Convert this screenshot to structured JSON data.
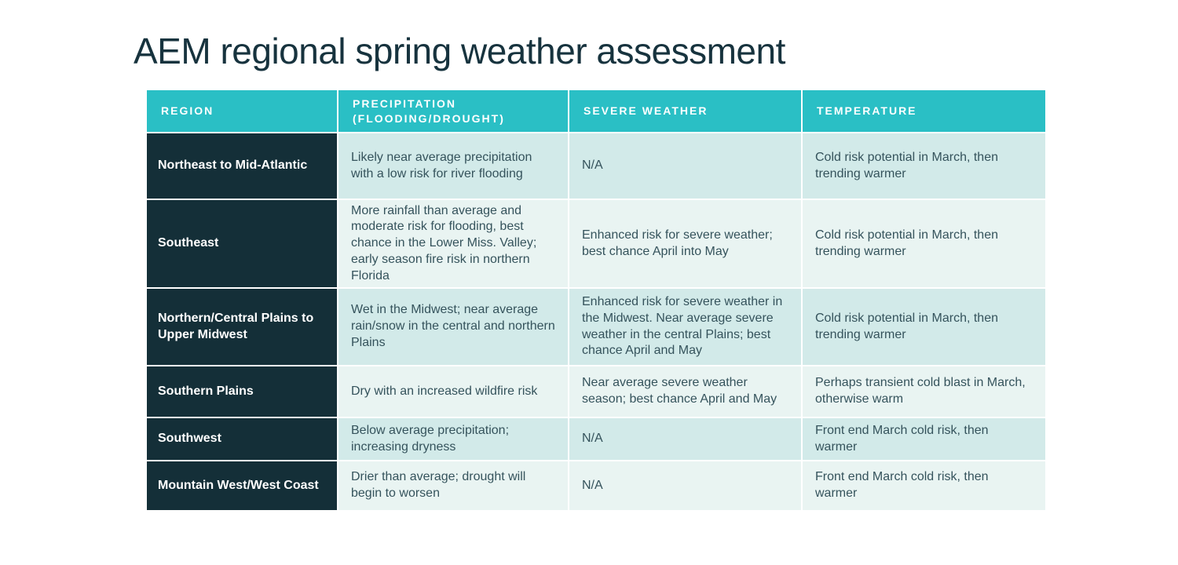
{
  "page": {
    "title": "AEM regional spring weather assessment"
  },
  "colors": {
    "header_bg": "#2abfc5",
    "region_column_bg": "#142f38",
    "row_odd_bg": "#d2eae9",
    "row_even_bg": "#e9f4f2",
    "title_text": "#17333e",
    "body_text": "#35535c",
    "header_text": "#ffffff"
  },
  "table": {
    "columns": [
      "REGION",
      "PRECIPITATION (FLOODING/DROUGHT)",
      "SEVERE WEATHER",
      "TEMPERATURE"
    ],
    "rows": [
      {
        "region": "Northeast to Mid-Atlantic",
        "precipitation": "Likely near average precipitation with a low risk for river flooding",
        "severe_weather": "N/A",
        "temperature": "Cold risk potential in March, then trending warmer"
      },
      {
        "region": "Southeast",
        "precipitation": "More rainfall than average and moderate risk for flooding, best chance in the Lower Miss. Valley; early season fire risk in northern Florida",
        "severe_weather": "Enhanced risk for severe weather; best chance April into May",
        "temperature": "Cold risk potential in March, then trending warmer"
      },
      {
        "region": "Northern/Central Plains to Upper Midwest",
        "precipitation": "Wet in the Midwest; near average rain/snow in the central and northern Plains",
        "severe_weather": "Enhanced risk for severe weather in the Midwest. Near average severe weather in the central Plains; best chance April and May",
        "temperature": "Cold risk potential in March, then trending warmer"
      },
      {
        "region": "Southern Plains",
        "precipitation": "Dry with an increased wildfire risk",
        "severe_weather": "Near average severe weather season; best chance April and May",
        "temperature": "Perhaps transient cold blast in March, otherwise warm"
      },
      {
        "region": "Southwest",
        "precipitation": "Below average precipitation; increasing dryness",
        "severe_weather": "N/A",
        "temperature": "Front end March cold risk, then warmer"
      },
      {
        "region": "Mountain West/West Coast",
        "precipitation": "Drier than average; drought will begin to worsen",
        "severe_weather": "N/A",
        "temperature": "Front end March cold risk, then warmer"
      }
    ]
  }
}
